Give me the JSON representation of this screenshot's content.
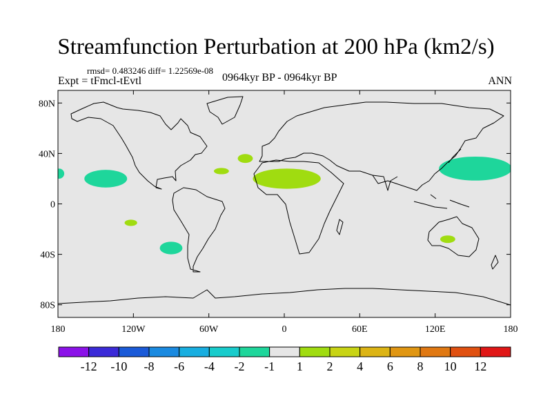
{
  "header": {
    "title": "Streamfunction Perturbation at 200 hPa (km2/s)",
    "stats": "rmsd= 0.483246 diff= 1.22569e-08",
    "experiment": "Expt = tFmcl-tEvtl",
    "period": "0964kyr BP - 0964kyr BP",
    "season": "ANN"
  },
  "map": {
    "projection": "cylindrical equidistant",
    "lon_range": [
      -180,
      180
    ],
    "lat_range": [
      -90,
      90
    ],
    "ocean_land_color": "#e6e6e6",
    "coastline_color": "#000000",
    "lat_ticks": [
      {
        "value": 80,
        "label": "80N"
      },
      {
        "value": 40,
        "label": "40N"
      },
      {
        "value": 0,
        "label": "0"
      },
      {
        "value": -40,
        "label": "40S"
      },
      {
        "value": -80,
        "label": "80S"
      }
    ],
    "lon_ticks": [
      {
        "value": -180,
        "label": "180"
      },
      {
        "value": -120,
        "label": "120W"
      },
      {
        "value": -60,
        "label": "60W"
      },
      {
        "value": 0,
        "label": "0"
      },
      {
        "value": 60,
        "label": "60E"
      },
      {
        "value": 120,
        "label": "120E"
      },
      {
        "value": 180,
        "label": "180"
      }
    ],
    "anomalies": [
      {
        "name": "east-pacific-negative",
        "lon": -142,
        "lat": 20,
        "rlon": 17,
        "rlat": 7,
        "color": "#1ed69b"
      },
      {
        "name": "dateline-west-edge-negative",
        "lon": -179,
        "lat": 24,
        "rlon": 4,
        "rlat": 4,
        "color": "#1ed69b"
      },
      {
        "name": "south-pacific-small-positive",
        "lon": -122,
        "lat": -15,
        "rlon": 5,
        "rlat": 2.5,
        "color": "#a0dc10"
      },
      {
        "name": "south-pacific-negative",
        "lon": -90,
        "lat": -35,
        "rlon": 9,
        "rlat": 5,
        "color": "#1ed69b"
      },
      {
        "name": "atlantic-positive",
        "lon": -50,
        "lat": 26,
        "rlon": 6,
        "rlat": 2.5,
        "color": "#a0dc10"
      },
      {
        "name": "azores-positive",
        "lon": -31,
        "lat": 36,
        "rlon": 6,
        "rlat": 3.5,
        "color": "#a0dc10"
      },
      {
        "name": "sahara-positive",
        "lon": 2,
        "lat": 20,
        "rlon": 27,
        "rlat": 8,
        "color": "#a0dc10"
      },
      {
        "name": "north-pacific-negative",
        "lon": 152,
        "lat": 28,
        "rlon": 29,
        "rlat": 9.5,
        "color": "#1ed69b"
      },
      {
        "name": "australia-positive",
        "lon": 130,
        "lat": -28,
        "rlon": 6,
        "rlat": 3,
        "color": "#a0dc10"
      }
    ]
  },
  "colorbar": {
    "colors": [
      "#8b12e8",
      "#3b2ad8",
      "#1a5ad8",
      "#1a8ae0",
      "#18aee0",
      "#18cccc",
      "#1ed69b",
      "#e6e6e6",
      "#a0dc10",
      "#c8d414",
      "#dcb414",
      "#e09612",
      "#e07812",
      "#e05010",
      "#e01616"
    ],
    "labels": [
      "-12",
      "-10",
      "-8",
      "-6",
      "-4",
      "-2",
      "-1",
      "1",
      "2",
      "4",
      "6",
      "8",
      "10",
      "12"
    ]
  }
}
